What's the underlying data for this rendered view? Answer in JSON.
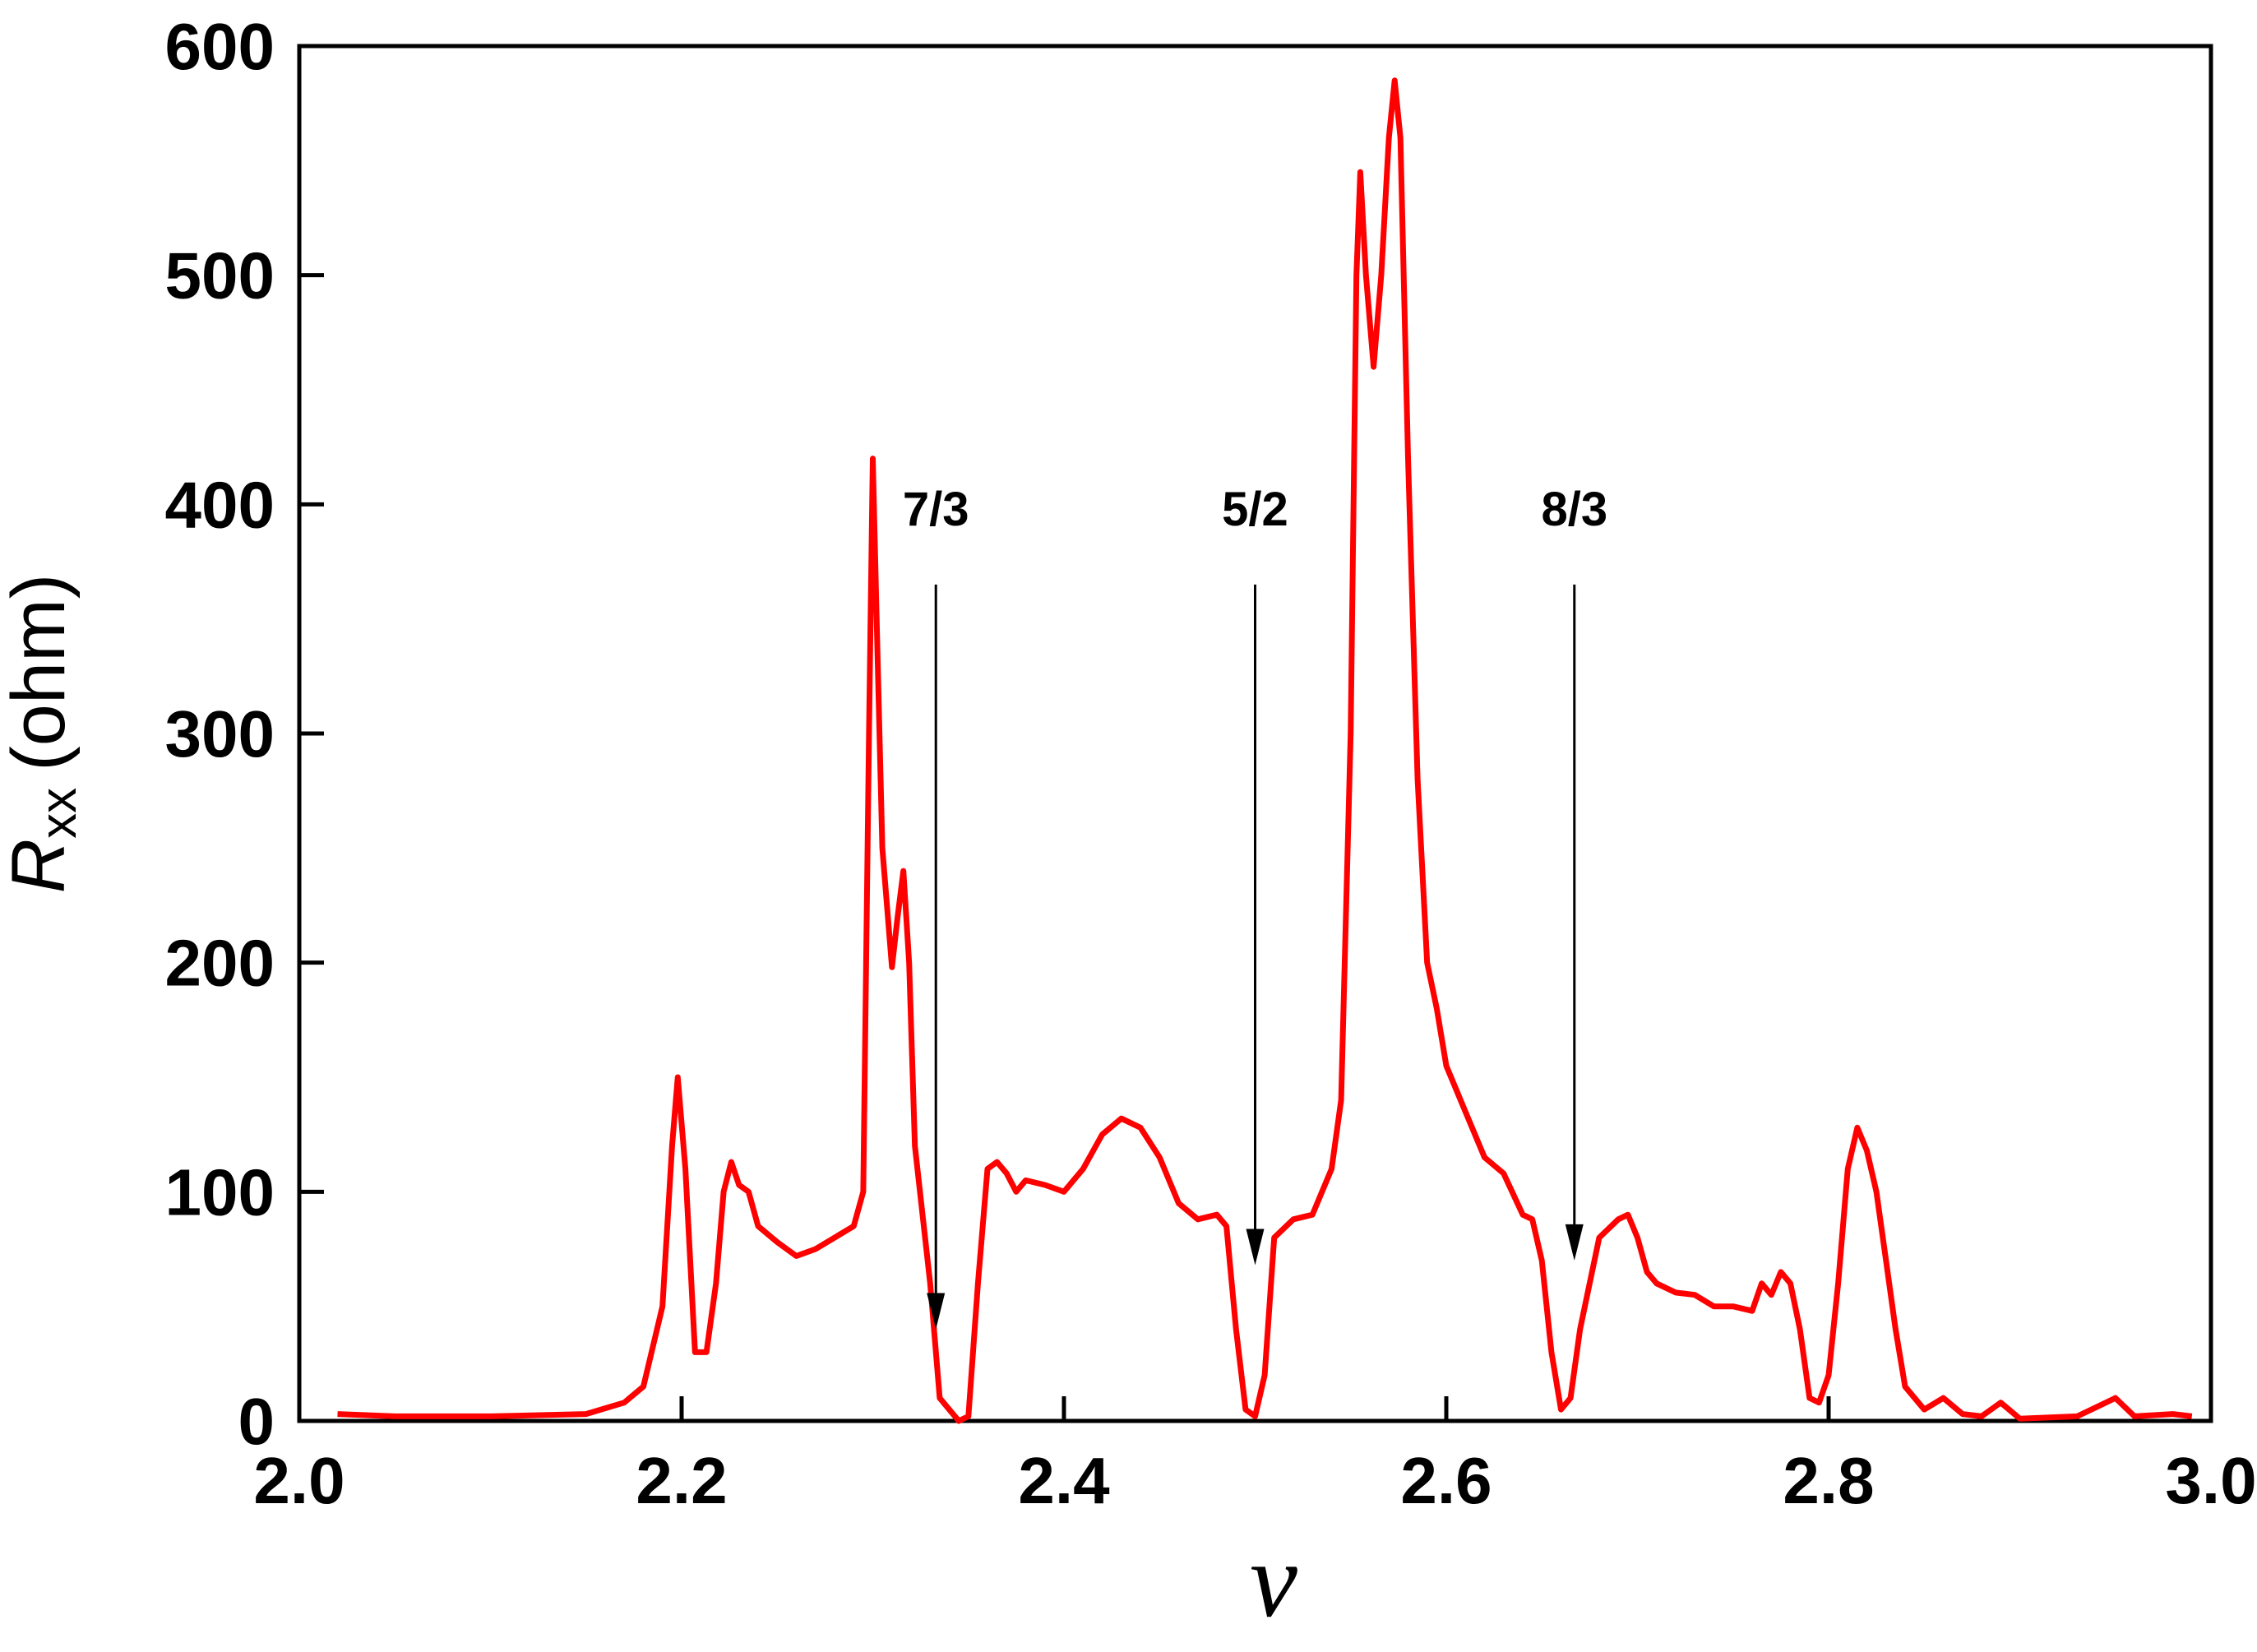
{
  "chart_data": {
    "type": "line",
    "xlabel": "ν",
    "ylabel": {
      "main": "R",
      "sub": "xx",
      "unit": "(ohm)"
    },
    "xlim": [
      2.0,
      3.0
    ],
    "ylim": [
      0,
      600
    ],
    "xticks": [
      {
        "value": 2.0,
        "label": "2.0"
      },
      2.2,
      2.4,
      2.6,
      2.8,
      {
        "value": 3.0,
        "label": "3.0"
      }
    ],
    "yticks": [
      0,
      100,
      200,
      300,
      400,
      500,
      600
    ],
    "grid": false,
    "annotations": [
      {
        "text": "7/3",
        "x": 2.333,
        "y_from": 365,
        "y_to": 40
      },
      {
        "text": "5/2",
        "x": 2.5,
        "y_from": 365,
        "y_to": 68
      },
      {
        "text": "8/3",
        "x": 2.667,
        "y_from": 365,
        "y_to": 70
      }
    ],
    "series": [
      {
        "color": "#ff0000",
        "x": [
          2.02,
          2.05,
          2.1,
          2.15,
          2.17,
          2.18,
          2.19,
          2.195,
          2.198,
          2.202,
          2.207,
          2.213,
          2.218,
          2.222,
          2.226,
          2.23,
          2.235,
          2.24,
          2.25,
          2.26,
          2.27,
          2.28,
          2.29,
          2.295,
          2.298,
          2.3,
          2.302,
          2.305,
          2.31,
          2.313,
          2.316,
          2.319,
          2.322,
          2.33,
          2.335,
          2.34,
          2.345,
          2.35,
          2.355,
          2.36,
          2.365,
          2.37,
          2.375,
          2.38,
          2.39,
          2.4,
          2.41,
          2.42,
          2.43,
          2.44,
          2.45,
          2.46,
          2.47,
          2.48,
          2.485,
          2.49,
          2.495,
          2.5,
          2.505,
          2.51,
          2.52,
          2.53,
          2.54,
          2.545,
          2.55,
          2.553,
          2.555,
          2.558,
          2.562,
          2.566,
          2.57,
          2.573,
          2.576,
          2.58,
          2.585,
          2.59,
          2.595,
          2.6,
          2.61,
          2.62,
          2.63,
          2.64,
          2.645,
          2.65,
          2.655,
          2.66,
          2.665,
          2.67,
          2.68,
          2.69,
          2.695,
          2.7,
          2.705,
          2.71,
          2.72,
          2.73,
          2.74,
          2.75,
          2.76,
          2.765,
          2.77,
          2.775,
          2.78,
          2.785,
          2.79,
          2.795,
          2.8,
          2.805,
          2.81,
          2.815,
          2.82,
          2.825,
          2.83,
          2.835,
          2.84,
          2.85,
          2.86,
          2.87,
          2.88,
          2.89,
          2.9,
          2.93,
          2.95,
          2.96,
          2.98,
          2.99
        ],
        "values": [
          3,
          2,
          2,
          3,
          8,
          15,
          50,
          120,
          150,
          110,
          30,
          30,
          60,
          100,
          113,
          103,
          100,
          85,
          78,
          72,
          75,
          80,
          85,
          100,
          300,
          420,
          350,
          250,
          198,
          220,
          240,
          200,
          120,
          60,
          10,
          5,
          0,
          2,
          60,
          110,
          113,
          108,
          100,
          105,
          103,
          100,
          110,
          125,
          132,
          128,
          115,
          95,
          88,
          90,
          85,
          40,
          5,
          2,
          20,
          80,
          88,
          90,
          110,
          140,
          300,
          500,
          545,
          500,
          460,
          500,
          560,
          585,
          560,
          420,
          280,
          200,
          180,
          155,
          135,
          115,
          108,
          90,
          88,
          70,
          30,
          5,
          10,
          40,
          80,
          88,
          90,
          80,
          65,
          60,
          56,
          55,
          50,
          50,
          48,
          60,
          55,
          65,
          60,
          40,
          10,
          8,
          20,
          60,
          110,
          128,
          118,
          100,
          70,
          40,
          15,
          5,
          10,
          3,
          2,
          8,
          1,
          2,
          10,
          2,
          3,
          2
        ]
      }
    ]
  }
}
